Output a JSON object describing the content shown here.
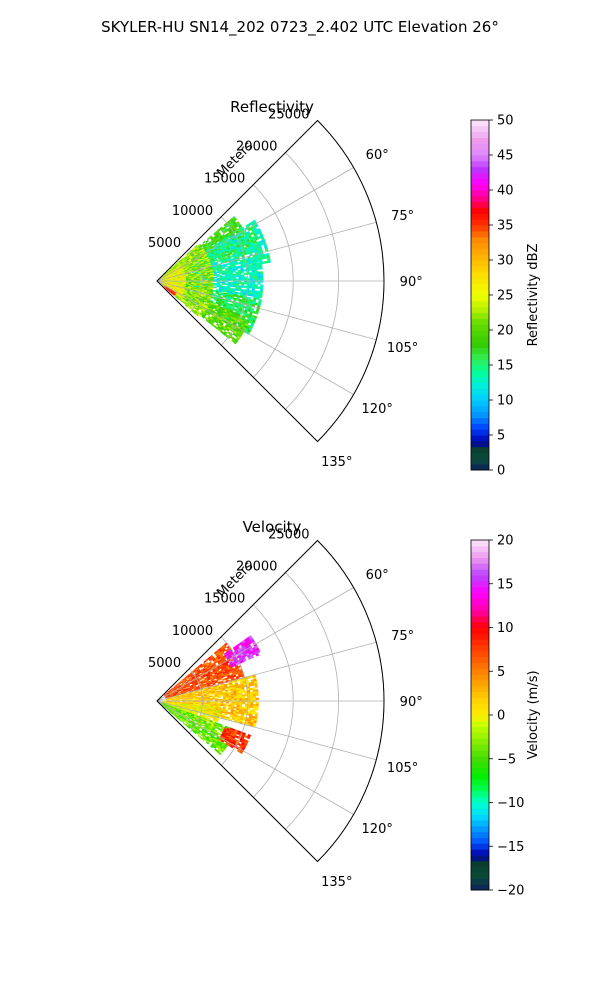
{
  "figure": {
    "suptitle": "SKYLER-HU  SN14_202  0723_2.402 UTC Elevation 26°"
  },
  "chart_data": [
    {
      "type": "heatmap",
      "subtype": "polar-sector-ppi",
      "title": "Reflectivity",
      "radial_label": "Meters",
      "r_ticks": [
        5000,
        10000,
        15000,
        20000,
        25000
      ],
      "r_tick_labels": [
        "5000",
        "10000",
        "15000",
        "20000",
        "25000"
      ],
      "r_max": 25000,
      "theta_ticks": [
        60,
        75,
        90,
        105,
        120,
        135
      ],
      "theta_tick_labels": [
        "60°",
        "75°",
        "90°",
        "105°",
        "120°",
        "135°"
      ],
      "theta_range_deg": [
        45,
        135
      ],
      "grid": true,
      "colorbar": {
        "label": "Reflectivity dBZ",
        "min": 0,
        "max": 50,
        "ticks": [
          0,
          5,
          10,
          15,
          20,
          25,
          30,
          35,
          40,
          45,
          50
        ],
        "tick_labels": [
          "0",
          "5",
          "10",
          "15",
          "20",
          "25",
          "30",
          "35",
          "40",
          "45",
          "50"
        ],
        "stops": [
          {
            "v": 0,
            "c": "#0b1f5c"
          },
          {
            "v": 1.5,
            "c": "#0a4a3a"
          },
          {
            "v": 3,
            "c": "#0a3f2f"
          },
          {
            "v": 4,
            "c": "#0000aa"
          },
          {
            "v": 6,
            "c": "#0040ff"
          },
          {
            "v": 8,
            "c": "#0099ff"
          },
          {
            "v": 10,
            "c": "#00ccff"
          },
          {
            "v": 12,
            "c": "#00eedd"
          },
          {
            "v": 14,
            "c": "#00ff99"
          },
          {
            "v": 16,
            "c": "#33ee55"
          },
          {
            "v": 18,
            "c": "#33cc00"
          },
          {
            "v": 21,
            "c": "#66dd00"
          },
          {
            "v": 23,
            "c": "#b8f000"
          },
          {
            "v": 25,
            "c": "#eeff00"
          },
          {
            "v": 28,
            "c": "#ffdd00"
          },
          {
            "v": 30,
            "c": "#ffbb00"
          },
          {
            "v": 33,
            "c": "#ff8800"
          },
          {
            "v": 35,
            "c": "#ff3300"
          },
          {
            "v": 37,
            "c": "#ff0000"
          },
          {
            "v": 39,
            "c": "#ff0099"
          },
          {
            "v": 41,
            "c": "#ff00ff"
          },
          {
            "v": 43,
            "c": "#bb33ff"
          },
          {
            "v": 45,
            "c": "#dd88ff"
          },
          {
            "v": 47,
            "c": "#ee99ee"
          },
          {
            "v": 50,
            "c": "#fbe8fb"
          }
        ]
      },
      "regions": [
        {
          "az": [
            50,
            70
          ],
          "r": [
            1500,
            11000
          ],
          "value": 18
        },
        {
          "az": [
            58,
            80
          ],
          "r": [
            4000,
            12500
          ],
          "value": 14
        },
        {
          "az": [
            80,
            100
          ],
          "r": [
            3000,
            11500
          ],
          "value": 13
        },
        {
          "az": [
            100,
            120
          ],
          "r": [
            3000,
            11500
          ],
          "value": 16
        },
        {
          "az": [
            112,
            128
          ],
          "r": [
            6000,
            11000
          ],
          "value": 20
        },
        {
          "az": [
            48,
            130
          ],
          "r": [
            500,
            6000
          ],
          "value": 22
        },
        {
          "az": [
            55,
            125
          ],
          "r": [
            500,
            3000
          ],
          "value": 26
        },
        {
          "az": [
            120,
            130
          ],
          "r": [
            1000,
            2500
          ],
          "value": 36
        }
      ]
    },
    {
      "type": "heatmap",
      "subtype": "polar-sector-ppi",
      "title": "Velocity",
      "radial_label": "Meters",
      "r_ticks": [
        5000,
        10000,
        15000,
        20000,
        25000
      ],
      "r_tick_labels": [
        "5000",
        "10000",
        "15000",
        "20000",
        "25000"
      ],
      "r_max": 25000,
      "theta_ticks": [
        60,
        75,
        90,
        105,
        120,
        135
      ],
      "theta_tick_labels": [
        "60°",
        "75°",
        "90°",
        "105°",
        "120°",
        "135°"
      ],
      "theta_range_deg": [
        45,
        135
      ],
      "grid": true,
      "colorbar": {
        "label": "Velocity (m/s)",
        "min": -20,
        "max": 20,
        "ticks": [
          -20,
          -15,
          -10,
          -5,
          0,
          5,
          10,
          15,
          20
        ],
        "tick_labels": [
          "−20",
          "−15",
          "−10",
          "−5",
          "0",
          "5",
          "10",
          "15",
          "20"
        ],
        "stops": [
          {
            "v": -20,
            "c": "#0b1f5c"
          },
          {
            "v": -18.5,
            "c": "#0a4a3a"
          },
          {
            "v": -17,
            "c": "#0a3f2f"
          },
          {
            "v": -16,
            "c": "#0000aa"
          },
          {
            "v": -14.5,
            "c": "#0055ff"
          },
          {
            "v": -13,
            "c": "#0099ff"
          },
          {
            "v": -11.5,
            "c": "#00ddff"
          },
          {
            "v": -10,
            "c": "#00ffcc"
          },
          {
            "v": -8.5,
            "c": "#00ff55"
          },
          {
            "v": -7,
            "c": "#00ee00"
          },
          {
            "v": -5,
            "c": "#44dd00"
          },
          {
            "v": -3,
            "c": "#88ee00"
          },
          {
            "v": -1,
            "c": "#ccff00"
          },
          {
            "v": 0,
            "c": "#ffee00"
          },
          {
            "v": 2,
            "c": "#ffcc00"
          },
          {
            "v": 4,
            "c": "#ff9900"
          },
          {
            "v": 6,
            "c": "#ff6600"
          },
          {
            "v": 8,
            "c": "#ff3300"
          },
          {
            "v": 10,
            "c": "#ff0000"
          },
          {
            "v": 12,
            "c": "#ff00aa"
          },
          {
            "v": 14,
            "c": "#ff00ff"
          },
          {
            "v": 16,
            "c": "#bb44ff"
          },
          {
            "v": 18,
            "c": "#ee99ee"
          },
          {
            "v": 20,
            "c": "#fbe8fb"
          }
        ]
      },
      "regions": [
        {
          "az": [
            50,
            75
          ],
          "r": [
            1000,
            10000
          ],
          "value": 7
        },
        {
          "az": [
            55,
            65
          ],
          "r": [
            9000,
            12500
          ],
          "value": 15
        },
        {
          "az": [
            75,
            105
          ],
          "r": [
            1000,
            11000
          ],
          "value": 2
        },
        {
          "az": [
            95,
            115
          ],
          "r": [
            500,
            7000
          ],
          "value": 0
        },
        {
          "az": [
            110,
            130
          ],
          "r": [
            500,
            9000
          ],
          "value": -4
        },
        {
          "az": [
            110,
            122
          ],
          "r": [
            8000,
            11000
          ],
          "value": 8
        }
      ]
    }
  ]
}
